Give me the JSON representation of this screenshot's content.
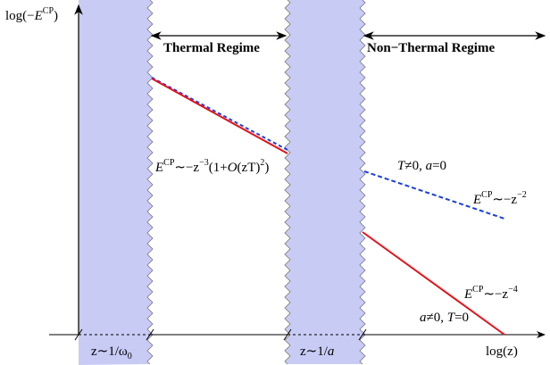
{
  "axes": {
    "y_label": [
      "log(−",
      "E",
      "CP",
      ")"
    ],
    "x_label": "log(z)"
  },
  "bands": [
    {
      "label": [
        "z∼1/ω",
        "0"
      ]
    },
    {
      "label": [
        "z∼1/",
        "a"
      ]
    }
  ],
  "regimes": [
    "Thermal Regime",
    "Non−Thermal Regime"
  ],
  "formulas": {
    "thermal": [
      "E",
      "CP",
      "∼−z",
      "−3",
      "(1+",
      "O",
      "(zT)",
      "2",
      ")"
    ],
    "t_case": [
      "T",
      "≠0, ",
      "a",
      "=0"
    ],
    "t_law": [
      "E",
      "CP",
      "∼−z",
      "−2"
    ],
    "a_law": [
      "E",
      "CP",
      "∼−z",
      "−4"
    ],
    "a_case": [
      "a",
      "≠0, ",
      "T",
      "=0"
    ]
  }
}
